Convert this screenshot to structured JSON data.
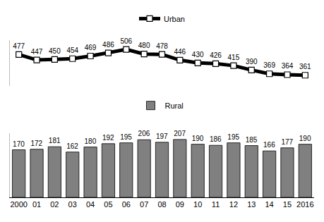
{
  "chart_data": [
    {
      "type": "line",
      "categories": [
        "2000",
        "01",
        "02",
        "03",
        "04",
        "05",
        "06",
        "07",
        "08",
        "09",
        "10",
        "11",
        "12",
        "13",
        "14",
        "15",
        "2016"
      ],
      "series": [
        {
          "name": "Urban",
          "color": "#000000",
          "marker": "square",
          "values": [
            477,
            447,
            450,
            454,
            469,
            486,
            506,
            480,
            478,
            446,
            430,
            426,
            415,
            390,
            369,
            364,
            361
          ]
        }
      ],
      "ylim": [
        300,
        560
      ],
      "data_labels": true,
      "tick_labels": false,
      "legend": "top"
    },
    {
      "type": "bar",
      "categories": [
        "2000",
        "01",
        "02",
        "03",
        "04",
        "05",
        "06",
        "07",
        "08",
        "09",
        "10",
        "11",
        "12",
        "13",
        "14",
        "15",
        "2016"
      ],
      "series": [
        {
          "name": "Rural",
          "color": "#808080",
          "values": [
            170,
            172,
            181,
            162,
            180,
            192,
            195,
            206,
            197,
            207,
            190,
            186,
            195,
            185,
            166,
            177,
            190
          ]
        }
      ],
      "ylim": [
        0,
        230
      ],
      "data_labels": true,
      "tick_labels": "x",
      "legend": "top"
    }
  ]
}
